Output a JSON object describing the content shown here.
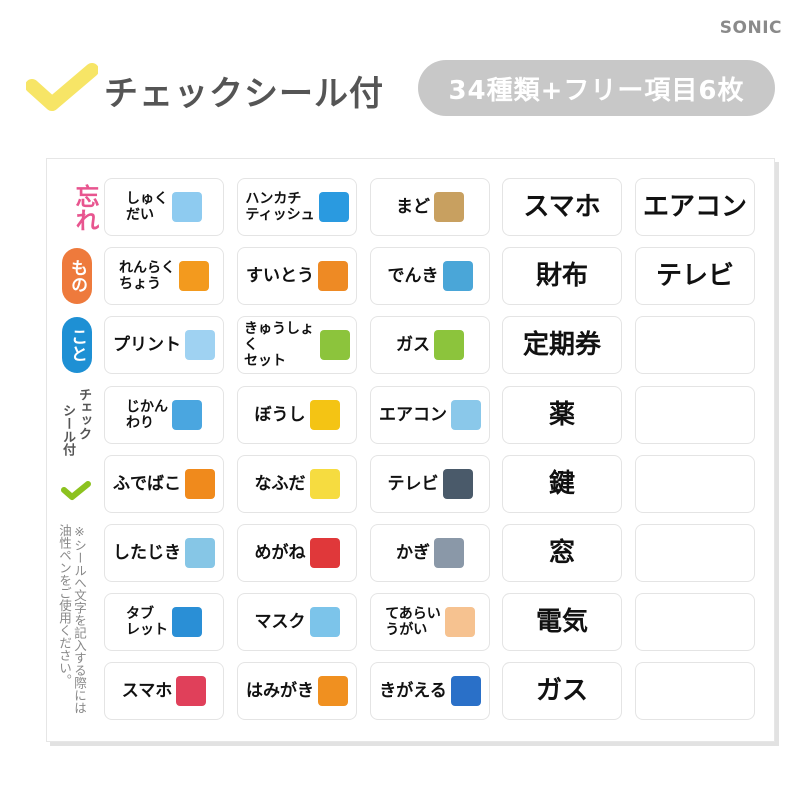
{
  "brand": "SONIC",
  "header": {
    "title": "チェックシール付",
    "badge": "34種類+フリー項目6枚"
  },
  "side": {
    "line1": "忘れ",
    "line2": "もの",
    "line3": "こと",
    "check_label_1": "チェック",
    "check_label_2": "シール付",
    "note": "※シールへ文字を記入する際には油性ペンをご使用ください。"
  },
  "colors": {
    "pink": "#e8558f",
    "orange": "#ee7a3c",
    "blue": "#1e90d4",
    "green": "#8cc21f",
    "yellow": "#f7e566"
  },
  "columns": [
    [
      {
        "label": "しゅく\nだい",
        "icon": "book-icon",
        "color": "#8ecbf0"
      },
      {
        "label": "れんらく\nちょう",
        "icon": "notebook-icon",
        "color": "#f39a1e"
      },
      {
        "label": "プリント",
        "icon": "paper-icon",
        "color": "#9fd2f2"
      },
      {
        "label": "じかん\nわり",
        "icon": "timetable-icon",
        "color": "#4aa6e0"
      },
      {
        "label": "ふでばこ",
        "icon": "pencil-case-icon",
        "color": "#f08a1c"
      },
      {
        "label": "したじき",
        "icon": "pencil-board-icon",
        "color": "#86c6e6"
      },
      {
        "label": "タブ\nレット",
        "icon": "tablet-icon",
        "color": "#2a8fd6"
      },
      {
        "label": "スマホ",
        "icon": "smartphone-icon",
        "color": "#e0405a"
      }
    ],
    [
      {
        "label": "ハンカチ\nティッシュ",
        "icon": "handkerchief-icon",
        "color": "#2a9ae0"
      },
      {
        "label": "すいとう",
        "icon": "water-bottle-icon",
        "color": "#ee8a24"
      },
      {
        "label": "きゅうしょく\nセット",
        "icon": "lunch-bag-icon",
        "color": "#8cc43c"
      },
      {
        "label": "ぼうし",
        "icon": "hat-icon",
        "color": "#f4c414"
      },
      {
        "label": "なふだ",
        "icon": "name-tag-icon",
        "color": "#f6dc40"
      },
      {
        "label": "めがね",
        "icon": "glasses-icon",
        "color": "#e0383a"
      },
      {
        "label": "マスク",
        "icon": "mask-icon",
        "color": "#7cc4ea"
      },
      {
        "label": "はみがき",
        "icon": "toothbrush-icon",
        "color": "#f09020"
      }
    ],
    [
      {
        "label": "まど",
        "icon": "window-icon",
        "color": "#c8a060"
      },
      {
        "label": "でんき",
        "icon": "lamp-icon",
        "color": "#4aa6d8"
      },
      {
        "label": "ガス",
        "icon": "pot-icon",
        "color": "#8cc43c"
      },
      {
        "label": "エアコン",
        "icon": "air-conditioner-icon",
        "color": "#8ac8ea"
      },
      {
        "label": "テレビ",
        "icon": "tv-icon",
        "color": "#4a5a6a"
      },
      {
        "label": "かぎ",
        "icon": "key-icon",
        "color": "#8a98a8"
      },
      {
        "label": "てあらい\nうがい",
        "icon": "hand-wash-icon",
        "color": "#f6c290"
      },
      {
        "label": "きがえる",
        "icon": "shirt-icon",
        "color": "#2a70c8"
      }
    ],
    [
      {
        "label": "スマホ"
      },
      {
        "label": "財布"
      },
      {
        "label": "定期券"
      },
      {
        "label": "薬"
      },
      {
        "label": "鍵"
      },
      {
        "label": "窓"
      },
      {
        "label": "電気"
      },
      {
        "label": "ガス"
      }
    ],
    [
      {
        "label": "エアコン"
      },
      {
        "label": "テレビ"
      },
      {
        "label": ""
      },
      {
        "label": ""
      },
      {
        "label": ""
      },
      {
        "label": ""
      },
      {
        "label": ""
      },
      {
        "label": ""
      }
    ]
  ]
}
